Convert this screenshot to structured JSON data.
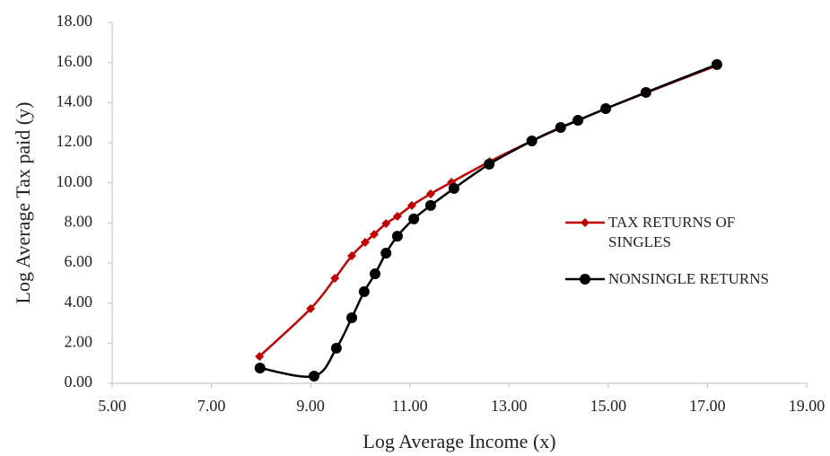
{
  "chart_data": {
    "type": "line",
    "x_label": "Log Average Income (x)",
    "y_label": "Log Average Tax paid (y)",
    "xlim": [
      5,
      19
    ],
    "xticks": [
      {
        "value": 5,
        "label": "5.00"
      },
      {
        "value": 7,
        "label": "7.00"
      },
      {
        "value": 9,
        "label": "9.00"
      },
      {
        "value": 11,
        "label": "11.00"
      },
      {
        "value": 13,
        "label": "13.00"
      },
      {
        "value": 15,
        "label": "15.00"
      },
      {
        "value": 17,
        "label": "17.00"
      },
      {
        "value": 19,
        "label": "19.00"
      }
    ],
    "ylim": [
      0,
      18
    ],
    "yticks": [
      {
        "value": 0,
        "label": "0.00"
      },
      {
        "value": 2,
        "label": "2.00"
      },
      {
        "value": 4,
        "label": "4.00"
      },
      {
        "value": 6,
        "label": "6.00"
      },
      {
        "value": 8,
        "label": "8.00"
      },
      {
        "value": 10,
        "label": "10.00"
      },
      {
        "value": 12,
        "label": "12.00"
      },
      {
        "value": 14,
        "label": "14.00"
      },
      {
        "value": 16,
        "label": "16.00"
      },
      {
        "value": 18,
        "label": "18.00"
      }
    ],
    "smooth": true,
    "series": [
      {
        "name": "TAX RETURNS OF SINGLES",
        "color": "#c00000",
        "marker": "diamond",
        "x": [
          7.97,
          9.0,
          9.49,
          9.83,
          10.1,
          10.28,
          10.52,
          10.75,
          11.04,
          11.42,
          11.84,
          12.61,
          13.46,
          14.06,
          14.4,
          14.95,
          15.78,
          17.19
        ],
        "values": [
          1.34,
          3.72,
          5.24,
          6.36,
          7.03,
          7.43,
          7.97,
          8.33,
          8.87,
          9.45,
          10.03,
          11.06,
          12.09,
          12.76,
          13.12,
          13.7,
          14.51,
          15.85
        ]
      },
      {
        "name": "NONSINGLE RETURNS",
        "color": "#000000",
        "marker": "circle",
        "x": [
          7.98,
          9.07,
          9.52,
          9.83,
          10.08,
          10.3,
          10.52,
          10.75,
          11.08,
          11.42,
          11.89,
          12.6,
          13.46,
          14.04,
          14.39,
          14.95,
          15.76,
          17.19
        ],
        "values": [
          0.76,
          0.36,
          1.75,
          3.27,
          4.57,
          5.46,
          6.49,
          7.34,
          8.2,
          8.87,
          9.72,
          10.93,
          12.09,
          12.76,
          13.12,
          13.7,
          14.51,
          15.9
        ]
      }
    ]
  }
}
